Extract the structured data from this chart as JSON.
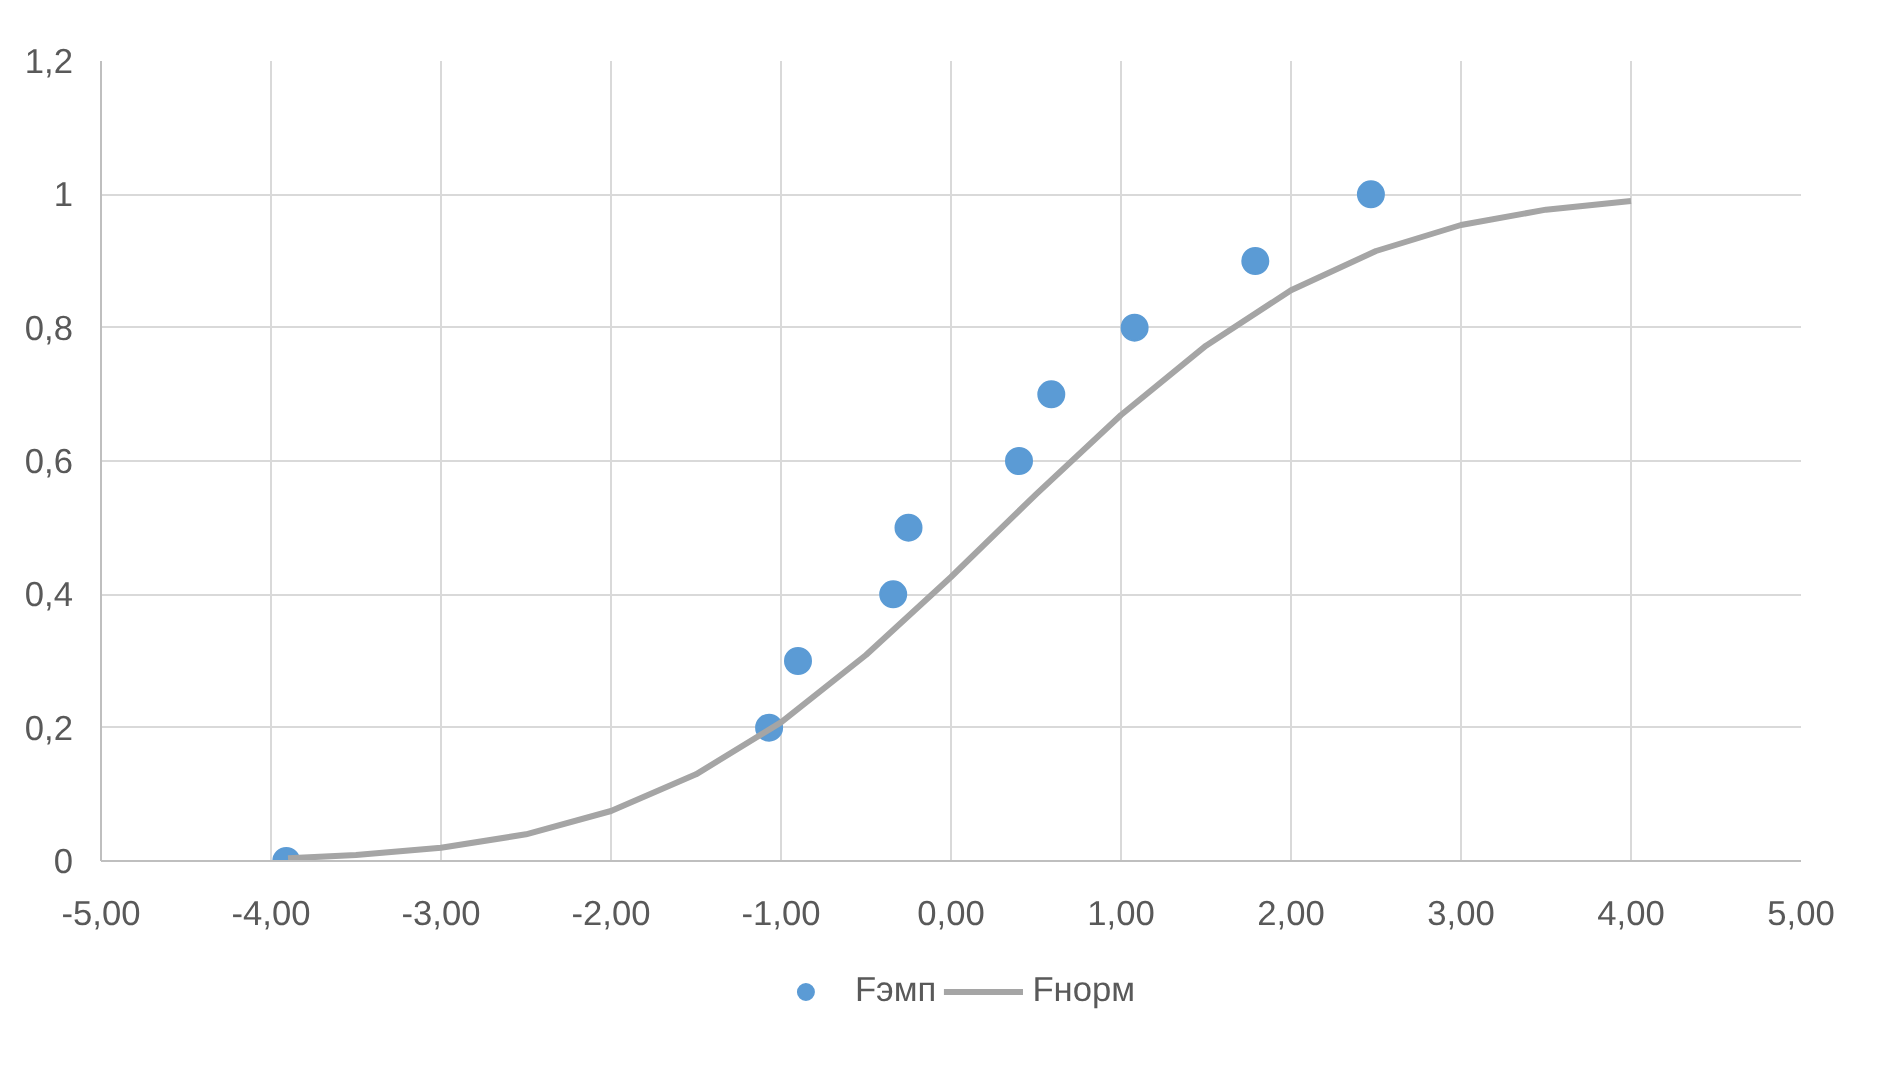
{
  "chart_data": {
    "type": "scatter",
    "xlim": [
      -5,
      5
    ],
    "ylim": [
      0,
      1.2
    ],
    "xticks": [
      {
        "value": -5,
        "label": "-5,00"
      },
      {
        "value": -4,
        "label": "-4,00"
      },
      {
        "value": -3,
        "label": "-3,00"
      },
      {
        "value": -2,
        "label": "-2,00"
      },
      {
        "value": -1,
        "label": "-1,00"
      },
      {
        "value": 0,
        "label": "0,00"
      },
      {
        "value": 1,
        "label": "1,00"
      },
      {
        "value": 2,
        "label": "2,00"
      },
      {
        "value": 3,
        "label": "3,00"
      },
      {
        "value": 4,
        "label": "4,00"
      },
      {
        "value": 5,
        "label": "5,00"
      }
    ],
    "yticks": [
      0,
      {
        "value": 0.2,
        "label": "0,2"
      },
      {
        "value": 0.4,
        "label": "0,4"
      },
      {
        "value": 0.6,
        "label": "0,6"
      },
      {
        "value": 0.8,
        "label": "0,8"
      },
      1,
      {
        "value": 1.2,
        "label": "1,2"
      }
    ],
    "grid": true,
    "legend": "bottom",
    "series": [
      {
        "name": "Fэмп",
        "marker": "circle",
        "color": "#5b9bd5",
        "x": [
          -3.91,
          -1.07,
          -0.9,
          -0.34,
          -0.25,
          0.4,
          0.59,
          1.08,
          1.79,
          2.47
        ],
        "values": [
          0,
          0.2,
          0.3,
          0.4,
          0.5,
          0.6,
          0.7,
          0.8,
          0.9,
          1.0
        ]
      },
      {
        "name": "Fнорм",
        "type": "line",
        "line_style": "solid",
        "color": "#a5a5a5",
        "x": [
          -3.9,
          -3.5,
          -3,
          -2.5,
          -2,
          -1.5,
          -1,
          -0.5,
          0,
          0.5,
          1,
          1.5,
          2,
          2.5,
          3,
          3.5,
          4
        ],
        "values": [
          0.004,
          0.009,
          0.02,
          0.04,
          0.075,
          0.13,
          0.208,
          0.309,
          0.426,
          0.55,
          0.669,
          0.773,
          0.856,
          0.915,
          0.954,
          0.977,
          0.99
        ]
      }
    ]
  }
}
